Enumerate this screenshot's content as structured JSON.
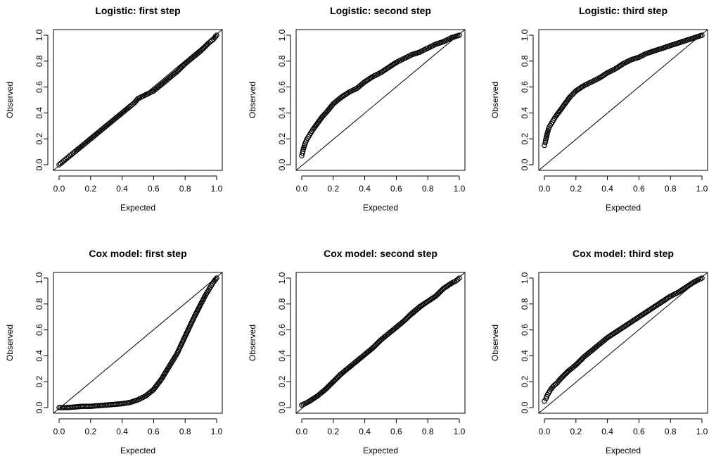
{
  "chart_data": [
    {
      "type": "scatter",
      "title": "Logistic: first step",
      "xlabel": "Expected",
      "ylabel": "Observed",
      "xlim": [
        0,
        1
      ],
      "ylim": [
        0,
        1
      ],
      "xticks": [
        "0.0",
        "0.2",
        "0.4",
        "0.6",
        "0.8",
        "1.0"
      ],
      "yticks": [
        "0.0",
        "0.2",
        "0.4",
        "0.6",
        "0.8",
        "1.0"
      ],
      "reference_line": "y = x",
      "points": [
        [
          0,
          0
        ],
        [
          0.02,
          0.02
        ],
        [
          0.05,
          0.05
        ],
        [
          0.08,
          0.08
        ],
        [
          0.1,
          0.1
        ],
        [
          0.15,
          0.15
        ],
        [
          0.2,
          0.2
        ],
        [
          0.25,
          0.25
        ],
        [
          0.3,
          0.3
        ],
        [
          0.35,
          0.35
        ],
        [
          0.4,
          0.4
        ],
        [
          0.45,
          0.45
        ],
        [
          0.48,
          0.48
        ],
        [
          0.5,
          0.51
        ],
        [
          0.55,
          0.54
        ],
        [
          0.6,
          0.57
        ],
        [
          0.65,
          0.62
        ],
        [
          0.7,
          0.67
        ],
        [
          0.75,
          0.72
        ],
        [
          0.8,
          0.78
        ],
        [
          0.85,
          0.83
        ],
        [
          0.9,
          0.88
        ],
        [
          0.95,
          0.94
        ],
        [
          0.98,
          0.97
        ],
        [
          1.0,
          1.0
        ]
      ]
    },
    {
      "type": "scatter",
      "title": "Logistic: second step",
      "xlabel": "Expected",
      "ylabel": "Observed",
      "xlim": [
        0,
        1
      ],
      "ylim": [
        0,
        1
      ],
      "xticks": [
        "0.0",
        "0.2",
        "0.4",
        "0.6",
        "0.8",
        "1.0"
      ],
      "yticks": [
        "0.0",
        "0.2",
        "0.4",
        "0.6",
        "0.8",
        "1.0"
      ],
      "reference_line": "y = x",
      "points": [
        [
          0,
          0.07
        ],
        [
          0.005,
          0.09
        ],
        [
          0.01,
          0.12
        ],
        [
          0.02,
          0.16
        ],
        [
          0.03,
          0.19
        ],
        [
          0.05,
          0.23
        ],
        [
          0.07,
          0.27
        ],
        [
          0.1,
          0.32
        ],
        [
          0.13,
          0.37
        ],
        [
          0.16,
          0.41
        ],
        [
          0.2,
          0.47
        ],
        [
          0.25,
          0.52
        ],
        [
          0.3,
          0.56
        ],
        [
          0.35,
          0.59
        ],
        [
          0.4,
          0.64
        ],
        [
          0.45,
          0.68
        ],
        [
          0.5,
          0.71
        ],
        [
          0.55,
          0.75
        ],
        [
          0.6,
          0.79
        ],
        [
          0.65,
          0.82
        ],
        [
          0.7,
          0.85
        ],
        [
          0.75,
          0.87
        ],
        [
          0.8,
          0.9
        ],
        [
          0.85,
          0.93
        ],
        [
          0.9,
          0.95
        ],
        [
          0.95,
          0.98
        ],
        [
          1.0,
          1.0
        ]
      ]
    },
    {
      "type": "scatter",
      "title": "Logistic: third step",
      "xlabel": "Expected",
      "ylabel": "Observed",
      "xlim": [
        0,
        1
      ],
      "ylim": [
        0,
        1
      ],
      "xticks": [
        "0.0",
        "0.2",
        "0.4",
        "0.6",
        "0.8",
        "1.0"
      ],
      "yticks": [
        "0.0",
        "0.2",
        "0.4",
        "0.6",
        "0.8",
        "1.0"
      ],
      "reference_line": "y = x",
      "points": [
        [
          0,
          0.15
        ],
        [
          0.005,
          0.17
        ],
        [
          0.01,
          0.2
        ],
        [
          0.02,
          0.25
        ],
        [
          0.03,
          0.29
        ],
        [
          0.05,
          0.33
        ],
        [
          0.07,
          0.37
        ],
        [
          0.1,
          0.42
        ],
        [
          0.13,
          0.47
        ],
        [
          0.16,
          0.52
        ],
        [
          0.2,
          0.57
        ],
        [
          0.25,
          0.61
        ],
        [
          0.3,
          0.64
        ],
        [
          0.35,
          0.67
        ],
        [
          0.4,
          0.71
        ],
        [
          0.45,
          0.74
        ],
        [
          0.5,
          0.78
        ],
        [
          0.55,
          0.81
        ],
        [
          0.6,
          0.83
        ],
        [
          0.65,
          0.86
        ],
        [
          0.7,
          0.88
        ],
        [
          0.75,
          0.9
        ],
        [
          0.8,
          0.92
        ],
        [
          0.85,
          0.94
        ],
        [
          0.9,
          0.96
        ],
        [
          0.95,
          0.98
        ],
        [
          1.0,
          1.0
        ]
      ]
    },
    {
      "type": "scatter",
      "title": "Cox model: first step",
      "xlabel": "Expected",
      "ylabel": "Observed",
      "xlim": [
        0,
        1
      ],
      "ylim": [
        0,
        1
      ],
      "xticks": [
        "0.0",
        "0.2",
        "0.4",
        "0.6",
        "0.8",
        "1.0"
      ],
      "yticks": [
        "0.0",
        "0.2",
        "0.4",
        "0.6",
        "0.8",
        "1.0"
      ],
      "reference_line": "y = x",
      "points": [
        [
          0,
          0
        ],
        [
          0.05,
          0
        ],
        [
          0.1,
          0.005
        ],
        [
          0.15,
          0.01
        ],
        [
          0.2,
          0.01
        ],
        [
          0.25,
          0.015
        ],
        [
          0.3,
          0.02
        ],
        [
          0.35,
          0.025
        ],
        [
          0.4,
          0.03
        ],
        [
          0.45,
          0.04
        ],
        [
          0.5,
          0.06
        ],
        [
          0.55,
          0.09
        ],
        [
          0.6,
          0.14
        ],
        [
          0.65,
          0.22
        ],
        [
          0.7,
          0.32
        ],
        [
          0.75,
          0.42
        ],
        [
          0.8,
          0.55
        ],
        [
          0.85,
          0.68
        ],
        [
          0.9,
          0.8
        ],
        [
          0.93,
          0.87
        ],
        [
          0.96,
          0.93
        ],
        [
          0.98,
          0.97
        ],
        [
          1.0,
          1.0
        ]
      ]
    },
    {
      "type": "scatter",
      "title": "Cox model: second step",
      "xlabel": "Expected",
      "ylabel": "Observed",
      "xlim": [
        0,
        1
      ],
      "ylim": [
        0,
        1
      ],
      "xticks": [
        "0.0",
        "0.2",
        "0.4",
        "0.6",
        "0.8",
        "1.0"
      ],
      "yticks": [
        "0.0",
        "0.2",
        "0.4",
        "0.6",
        "0.8",
        "1.0"
      ],
      "reference_line": "y = x",
      "points": [
        [
          0,
          0.02
        ],
        [
          0.02,
          0.03
        ],
        [
          0.05,
          0.05
        ],
        [
          0.1,
          0.09
        ],
        [
          0.15,
          0.14
        ],
        [
          0.2,
          0.2
        ],
        [
          0.25,
          0.26
        ],
        [
          0.3,
          0.31
        ],
        [
          0.35,
          0.36
        ],
        [
          0.4,
          0.41
        ],
        [
          0.45,
          0.46
        ],
        [
          0.5,
          0.52
        ],
        [
          0.55,
          0.57
        ],
        [
          0.6,
          0.62
        ],
        [
          0.65,
          0.67
        ],
        [
          0.7,
          0.73
        ],
        [
          0.75,
          0.78
        ],
        [
          0.8,
          0.82
        ],
        [
          0.85,
          0.86
        ],
        [
          0.9,
          0.92
        ],
        [
          0.95,
          0.96
        ],
        [
          0.98,
          0.98
        ],
        [
          1.0,
          1.0
        ]
      ]
    },
    {
      "type": "scatter",
      "title": "Cox model: third step",
      "xlabel": "Expected",
      "ylabel": "Observed",
      "xlim": [
        0,
        1
      ],
      "ylim": [
        0,
        1
      ],
      "xticks": [
        "0.0",
        "0.2",
        "0.4",
        "0.6",
        "0.8",
        "1.0"
      ],
      "yticks": [
        "0.0",
        "0.2",
        "0.4",
        "0.6",
        "0.8",
        "1.0"
      ],
      "reference_line": "y = x",
      "points": [
        [
          0,
          0.05
        ],
        [
          0.01,
          0.07
        ],
        [
          0.02,
          0.1
        ],
        [
          0.04,
          0.14
        ],
        [
          0.06,
          0.17
        ],
        [
          0.08,
          0.19
        ],
        [
          0.1,
          0.22
        ],
        [
          0.15,
          0.28
        ],
        [
          0.2,
          0.33
        ],
        [
          0.25,
          0.39
        ],
        [
          0.3,
          0.44
        ],
        [
          0.35,
          0.49
        ],
        [
          0.4,
          0.54
        ],
        [
          0.45,
          0.58
        ],
        [
          0.5,
          0.62
        ],
        [
          0.55,
          0.66
        ],
        [
          0.6,
          0.7
        ],
        [
          0.65,
          0.74
        ],
        [
          0.7,
          0.78
        ],
        [
          0.75,
          0.82
        ],
        [
          0.8,
          0.86
        ],
        [
          0.85,
          0.89
        ],
        [
          0.9,
          0.93
        ],
        [
          0.95,
          0.97
        ],
        [
          1.0,
          1.0
        ]
      ]
    }
  ]
}
